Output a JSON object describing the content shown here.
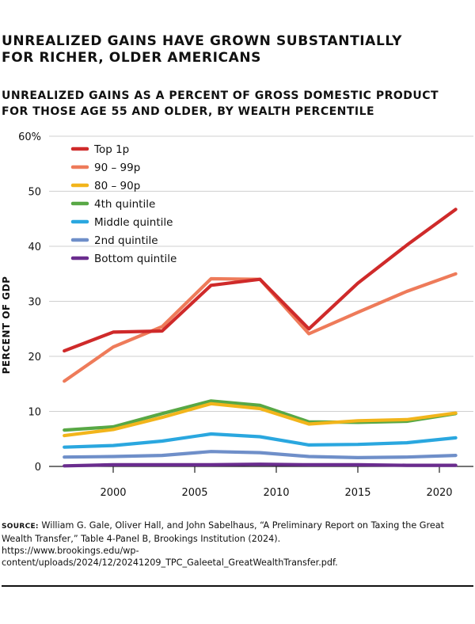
{
  "header": {
    "title_line1": "UNREALIZED GAINS HAVE GROWN SUBSTANTIALLY",
    "title_line2": "FOR RICHER, OLDER AMERICANS",
    "subtitle_line1": "UNREALIZED GAINS AS A PERCENT OF GROSS DOMESTIC PRODUCT",
    "subtitle_line2": "FOR THOSE AGE 55 AND OLDER, BY WEALTH PERCENTILE"
  },
  "chart_data": {
    "type": "line",
    "ylabel": "PERCENT OF GDP",
    "xlabel": "",
    "ylim": [
      0,
      60
    ],
    "xlim": [
      1996,
      2022
    ],
    "y_ticks": [
      0,
      10,
      20,
      30,
      40,
      50,
      60
    ],
    "y_tick_labels": [
      "0",
      "10",
      "20",
      "30",
      "40",
      "50",
      "60%"
    ],
    "x_ticks": [
      2000,
      2005,
      2010,
      2015,
      2020
    ],
    "x_tick_labels": [
      "2000",
      "2005",
      "2010",
      "2015",
      "2020"
    ],
    "grid": "horizontal",
    "legend": "top-left",
    "x": [
      1997,
      2000,
      2003,
      2006,
      2009,
      2012,
      2015,
      2018,
      2021
    ],
    "series": [
      {
        "name": "Bottom quintile",
        "color": "#6a2c8e",
        "values": [
          0.1,
          0.3,
          0.3,
          0.3,
          0.4,
          0.3,
          0.3,
          0.2,
          0.2
        ]
      },
      {
        "name": "2nd quintile",
        "color": "#6f8fc9",
        "values": [
          1.7,
          1.8,
          2.0,
          2.7,
          2.5,
          1.8,
          1.6,
          1.7,
          2.0
        ]
      },
      {
        "name": "Middle quintile",
        "color": "#2aa7df",
        "values": [
          3.5,
          3.8,
          4.6,
          5.9,
          5.4,
          3.9,
          4.0,
          4.3,
          5.2
        ]
      },
      {
        "name": "4th quintile",
        "color": "#58a845",
        "values": [
          6.6,
          7.2,
          9.6,
          11.9,
          11.1,
          8.1,
          8.0,
          8.2,
          9.6
        ]
      },
      {
        "name": "80 –  90p",
        "color": "#f2b51b",
        "values": [
          5.6,
          6.7,
          8.9,
          11.4,
          10.5,
          7.7,
          8.3,
          8.5,
          9.7
        ]
      },
      {
        "name": "90 – 99p",
        "color": "#ee7b5a",
        "values": [
          15.5,
          21.7,
          25.4,
          34.1,
          34.0,
          24.1,
          28.0,
          31.8,
          35.0
        ]
      },
      {
        "name": "Top 1p",
        "color": "#cf2a2a",
        "values": [
          21.0,
          24.4,
          24.6,
          32.9,
          34.0,
          25.0,
          33.3,
          40.2,
          46.7
        ]
      }
    ],
    "legend_order": [
      "Top 1p",
      "90 – 99p",
      "80 –  90p",
      "4th quintile",
      "Middle quintile",
      "2nd quintile",
      "Bottom quintile"
    ]
  },
  "source": {
    "label": "SOURCE:",
    "text": "William G. Gale, Oliver Hall, and John Sabelhaus, “A Preliminary Report on Taxing the Great Wealth Transfer,” Table 4-Panel B, Brookings Institution (2024).",
    "url": "https://www.brookings.edu/wp-content/uploads/2024/12/20241209_TPC_Galeetal_GreatWealthTransfer.pdf."
  }
}
